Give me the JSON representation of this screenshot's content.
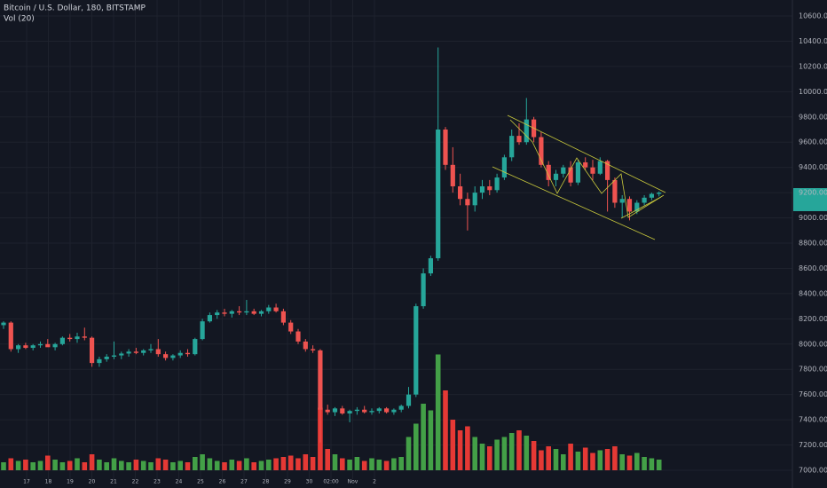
{
  "chart_data": {
    "type": "candlestick",
    "title": "Bitcoin / U.S. Dollar, 180, BITSTAMP",
    "volume_title": "Vol (20)",
    "up_color": "#26a69a",
    "down_color": "#ef5350",
    "volume_up_color": "#43a047",
    "volume_down_color": "#e53935",
    "ylim": [
      7000,
      10600
    ],
    "yticks": [
      {
        "value": 7000,
        "label": "7000.00"
      },
      {
        "value": 7200,
        "label": "7200.00"
      },
      {
        "value": 7400,
        "label": "7400.00"
      },
      {
        "value": 7600,
        "label": "7600.00"
      },
      {
        "value": 7800,
        "label": "7800.00"
      },
      {
        "value": 8000,
        "label": "8000.00"
      },
      {
        "value": 8200,
        "label": "8200.00"
      },
      {
        "value": 8400,
        "label": "8400.00"
      },
      {
        "value": 8600,
        "label": "8600.00"
      },
      {
        "value": 8800,
        "label": "8800.00"
      },
      {
        "value": 9000,
        "label": "9000.00"
      },
      {
        "value": 9200,
        "label": "9200.00"
      },
      {
        "value": 9400,
        "label": "9400.00"
      },
      {
        "value": 9600,
        "label": "9600.00"
      },
      {
        "value": 9800,
        "label": "9800.00"
      },
      {
        "value": 10000,
        "label": "10000.00"
      },
      {
        "value": 10200,
        "label": "10200.00"
      },
      {
        "value": 10400,
        "label": "10400.00"
      },
      {
        "value": 10600,
        "label": "10600.00"
      }
    ],
    "x_tick_labels": [
      "17",
      "18",
      "19",
      "20",
      "21",
      "22",
      "23",
      "24",
      "25",
      "26",
      "27",
      "28",
      "29",
      "30",
      "02:00",
      "Nov",
      "2"
    ],
    "grid": true,
    "vlim": [
      0,
      1000
    ],
    "open": [
      8150,
      8170,
      7960,
      7990,
      7970,
      7990,
      8000,
      7975,
      8000,
      8050,
      8040,
      8060,
      8050,
      7850,
      7880,
      7900,
      7910,
      7925,
      7940,
      7930,
      7950,
      7960,
      7920,
      7890,
      7910,
      7930,
      7920,
      8040,
      8180,
      8230,
      8250,
      8240,
      8260,
      8250,
      8260,
      8240,
      8260,
      8290,
      8260,
      8170,
      8100,
      8020,
      7960,
      7950,
      7480,
      7460,
      7490,
      7450,
      7470,
      7480,
      7460,
      7470,
      7490,
      7460,
      7480,
      7510,
      7600,
      8300,
      8560,
      8680,
      9700,
      9420,
      9250,
      9150,
      9100,
      9200,
      9250,
      9220,
      9320,
      9480,
      9650,
      9600,
      9780,
      9640,
      9420,
      9300,
      9350,
      9400,
      9280,
      9440,
      9400,
      9350,
      9450,
      9300,
      9120,
      9150,
      9050,
      9120,
      9160,
      9190
    ],
    "high": [
      8180,
      8180,
      8000,
      8010,
      8000,
      8020,
      8040,
      8010,
      8060,
      8080,
      8090,
      8130,
      8060,
      7900,
      7920,
      8020,
      7940,
      7960,
      7970,
      7960,
      8000,
      8040,
      7940,
      7920,
      7950,
      7960,
      8050,
      8200,
      8250,
      8270,
      8280,
      8270,
      8300,
      8350,
      8280,
      8270,
      8310,
      8320,
      8280,
      8190,
      8120,
      8040,
      7990,
      7960,
      7520,
      7500,
      7510,
      7480,
      7500,
      7510,
      7490,
      7500,
      7500,
      7490,
      7520,
      7660,
      8320,
      8600,
      8700,
      10350,
      9720,
      9560,
      9350,
      9200,
      9250,
      9300,
      9300,
      9350,
      9500,
      9700,
      9750,
      9950,
      9800,
      9680,
      9450,
      9380,
      9420,
      9450,
      9460,
      9480,
      9460,
      9480,
      9460,
      9320,
      9180,
      9170,
      9140,
      9180,
      9200,
      9210
    ],
    "low": [
      8120,
      7940,
      7930,
      7960,
      7950,
      7970,
      7980,
      7950,
      7990,
      8020,
      8010,
      8030,
      7820,
      7820,
      7860,
      7880,
      7880,
      7900,
      7920,
      7910,
      7930,
      7900,
      7870,
      7870,
      7890,
      7900,
      7910,
      8030,
      8170,
      8200,
      8220,
      8210,
      8230,
      8230,
      8230,
      8220,
      8240,
      8250,
      8150,
      8080,
      8000,
      7940,
      7930,
      7220,
      7440,
      7430,
      7440,
      7380,
      7440,
      7450,
      7440,
      7450,
      7450,
      7440,
      7460,
      7490,
      7580,
      8280,
      8540,
      8660,
      9380,
      9200,
      9100,
      8900,
      9050,
      9150,
      9180,
      9200,
      9300,
      9450,
      9580,
      9580,
      9600,
      9400,
      9250,
      9250,
      9320,
      9250,
      9260,
      9380,
      9300,
      9340,
      9050,
      9080,
      9000,
      8980,
      9030,
      9100,
      9140,
      9170
    ],
    "close": [
      8170,
      7960,
      7990,
      7970,
      7990,
      8000,
      7975,
      8000,
      8050,
      8040,
      8060,
      8050,
      7850,
      7880,
      7900,
      7910,
      7925,
      7940,
      7930,
      7950,
      7960,
      7920,
      7890,
      7910,
      7930,
      7920,
      8040,
      8180,
      8230,
      8250,
      8240,
      8260,
      8250,
      8260,
      8240,
      8260,
      8290,
      8260,
      8170,
      8100,
      8020,
      7960,
      7950,
      7480,
      7460,
      7490,
      7450,
      7470,
      7480,
      7460,
      7470,
      7490,
      7460,
      7480,
      7510,
      7600,
      8300,
      8560,
      8680,
      9700,
      9420,
      9250,
      9150,
      9100,
      9200,
      9250,
      9220,
      9320,
      9480,
      9650,
      9600,
      9780,
      9640,
      9420,
      9300,
      9350,
      9400,
      9280,
      9440,
      9400,
      9350,
      9450,
      9300,
      9120,
      9150,
      9050,
      9120,
      9160,
      9190,
      9200
    ],
    "volume": [
      60,
      90,
      70,
      80,
      60,
      70,
      110,
      80,
      60,
      70,
      90,
      60,
      120,
      80,
      60,
      90,
      70,
      60,
      80,
      70,
      60,
      90,
      80,
      60,
      70,
      60,
      100,
      120,
      90,
      70,
      60,
      80,
      70,
      90,
      60,
      70,
      80,
      90,
      100,
      110,
      90,
      120,
      100,
      470,
      160,
      120,
      90,
      80,
      100,
      70,
      90,
      80,
      70,
      90,
      100,
      250,
      350,
      500,
      450,
      870,
      600,
      380,
      300,
      330,
      250,
      200,
      180,
      230,
      250,
      280,
      300,
      260,
      220,
      150,
      180,
      160,
      120,
      200,
      140,
      170,
      130,
      150,
      160,
      180,
      120,
      110,
      130,
      100,
      90,
      80
    ]
  }
}
